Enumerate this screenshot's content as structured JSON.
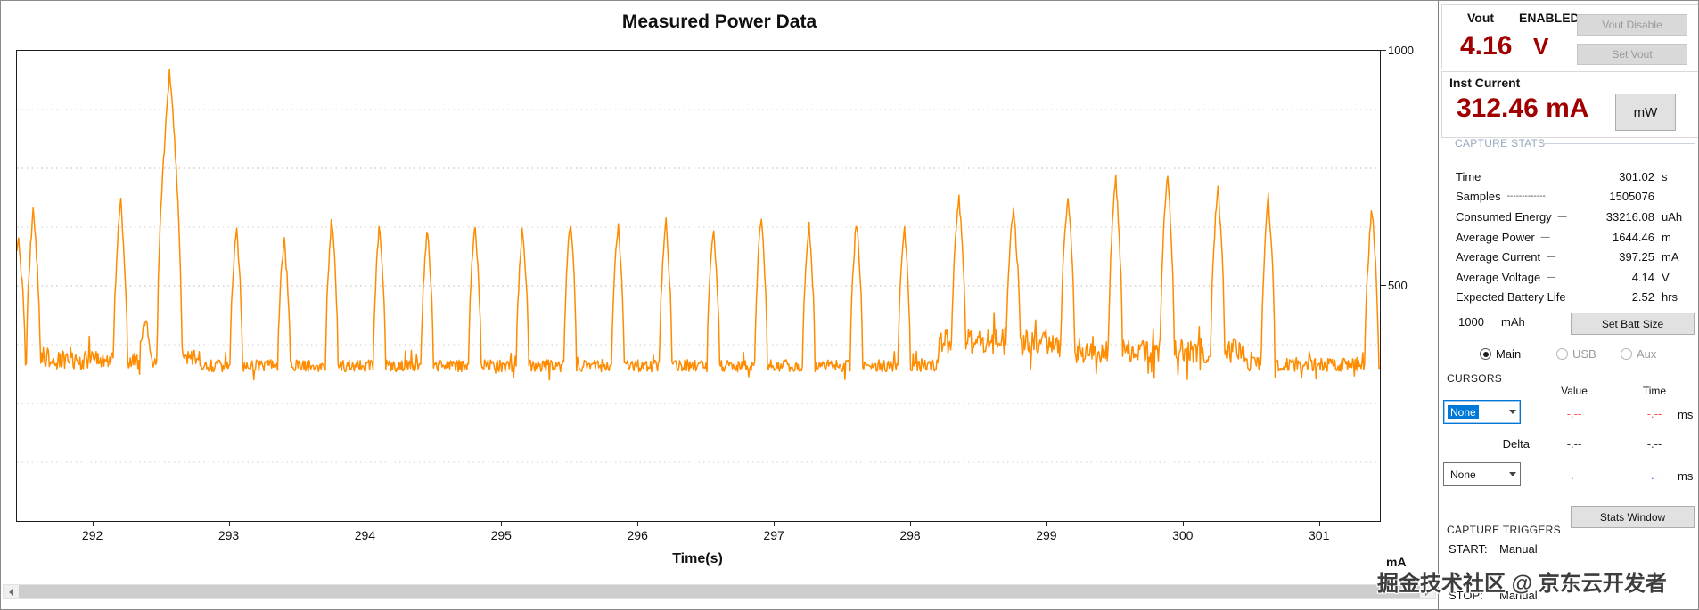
{
  "chart_data": {
    "type": "line",
    "title": "Measured Power Data",
    "xlabel": "Time(s)",
    "ylabel": "mA",
    "x_range": [
      291.44,
      301.44
    ],
    "y_range": [
      0,
      1000
    ],
    "x_ticks": [
      292,
      293,
      294,
      295,
      296,
      297,
      298,
      299,
      300,
      301
    ],
    "y_ticks": [
      {
        "value": 1000,
        "label": "1000"
      },
      {
        "value": 500,
        "label": "500"
      }
    ],
    "grid_step": 125,
    "grid_style": "dotted-horizontal",
    "legend": "none",
    "line_color": "#FF8C00",
    "baseline_segments": [
      [
        291.44,
        292.45,
        342,
        20
      ],
      [
        292.45,
        292.78,
        348,
        16
      ],
      [
        292.78,
        298.2,
        330,
        13
      ],
      [
        298.2,
        299.08,
        380,
        28
      ],
      [
        299.08,
        300.45,
        362,
        26
      ],
      [
        300.45,
        301.44,
        333,
        15
      ]
    ],
    "spikes": [
      [
        291.45,
        600,
        0.05
      ],
      [
        291.56,
        660,
        0.05
      ],
      [
        292.2,
        685,
        0.05
      ],
      [
        292.38,
        430,
        0.04
      ],
      [
        292.56,
        955,
        0.09
      ],
      [
        293.05,
        620,
        0.045
      ],
      [
        293.4,
        600,
        0.045
      ],
      [
        293.75,
        645,
        0.045
      ],
      [
        294.1,
        630,
        0.045
      ],
      [
        294.45,
        620,
        0.045
      ],
      [
        294.8,
        635,
        0.045
      ],
      [
        295.15,
        625,
        0.045
      ],
      [
        295.5,
        645,
        0.045
      ],
      [
        295.85,
        630,
        0.045
      ],
      [
        296.2,
        645,
        0.045
      ],
      [
        296.55,
        620,
        0.045
      ],
      [
        296.9,
        655,
        0.045
      ],
      [
        297.25,
        635,
        0.045
      ],
      [
        297.6,
        645,
        0.045
      ],
      [
        297.95,
        625,
        0.045
      ],
      [
        298.35,
        690,
        0.05
      ],
      [
        298.75,
        665,
        0.05
      ],
      [
        299.15,
        695,
        0.05
      ],
      [
        299.5,
        735,
        0.05
      ],
      [
        299.88,
        745,
        0.05
      ],
      [
        300.25,
        715,
        0.05
      ],
      [
        300.62,
        690,
        0.05
      ],
      [
        301.38,
        665,
        0.05
      ]
    ]
  },
  "panel": {
    "vout": {
      "label": "Vout",
      "status": "ENABLED",
      "value": "4.16",
      "unit": "V",
      "disable_button": "Vout Disable",
      "set_button": "Set Vout"
    },
    "inst_current": {
      "label": "Inst Current",
      "value": "312.46 mA",
      "mw_button": "mW"
    },
    "capture_stats": {
      "heading": "CAPTURE STATS",
      "rows": [
        {
          "label": "Time",
          "leader": "",
          "value": "301.02",
          "unit": "s"
        },
        {
          "label": "Samples",
          "leader": "-------------",
          "value": "1505076",
          "unit": ""
        },
        {
          "label": "Consumed Energy",
          "leader": "—",
          "value": "33216.08",
          "unit": "uAh"
        },
        {
          "label": "Average Power",
          "leader": "—",
          "value": "1644.46",
          "unit": "m"
        },
        {
          "label": "Average Current",
          "leader": "—",
          "value": "397.25",
          "unit": "mA"
        },
        {
          "label": "Average Voltage",
          "leader": "—",
          "value": "4.14",
          "unit": "V"
        },
        {
          "label": "Expected Battery Life",
          "leader": "",
          "value": "2.52",
          "unit": "hrs"
        }
      ]
    },
    "battery": {
      "capacity": "1000",
      "unit": "mAh",
      "button": "Set Batt Size"
    },
    "channels": [
      {
        "label": "Main",
        "selected": true,
        "enabled": true
      },
      {
        "label": "USB",
        "selected": false,
        "enabled": false
      },
      {
        "label": "Aux",
        "selected": false,
        "enabled": false
      }
    ],
    "cursors": {
      "heading": "CURSORS",
      "value_col": "Value",
      "time_col": "Time",
      "cursor1": {
        "selection": "None",
        "value": "-.--",
        "time": "-.--",
        "unit": "ms"
      },
      "delta": {
        "label": "Delta",
        "value": "-.--",
        "time": "-.--"
      },
      "cursor2": {
        "selection": "None",
        "value": "-.--",
        "time": "-.--",
        "unit": "ms"
      }
    },
    "stats_window_button": "Stats Window",
    "capture_triggers": {
      "heading": "CAPTURE TRIGGERS",
      "start_label": "START:",
      "start_value": "Manual",
      "stop_label": "STOP:",
      "stop_value": "Manual"
    }
  },
  "watermark": "掘金技术社区 @ 京东云开发者",
  "colors": {
    "waveform_orange": "#FF8C00",
    "value_dark_red": "#A00000",
    "cursor1_red": "#FF4D4D",
    "cursor2_blue": "#4D4DFF",
    "selection_blue": "#0078D7",
    "stats_heading_blue_gray": "#96A6BC"
  },
  "icons": {
    "dropdown_arrow": "triangle-down",
    "scroll_left": "triangle-left",
    "scroll_right": "triangle-right"
  }
}
